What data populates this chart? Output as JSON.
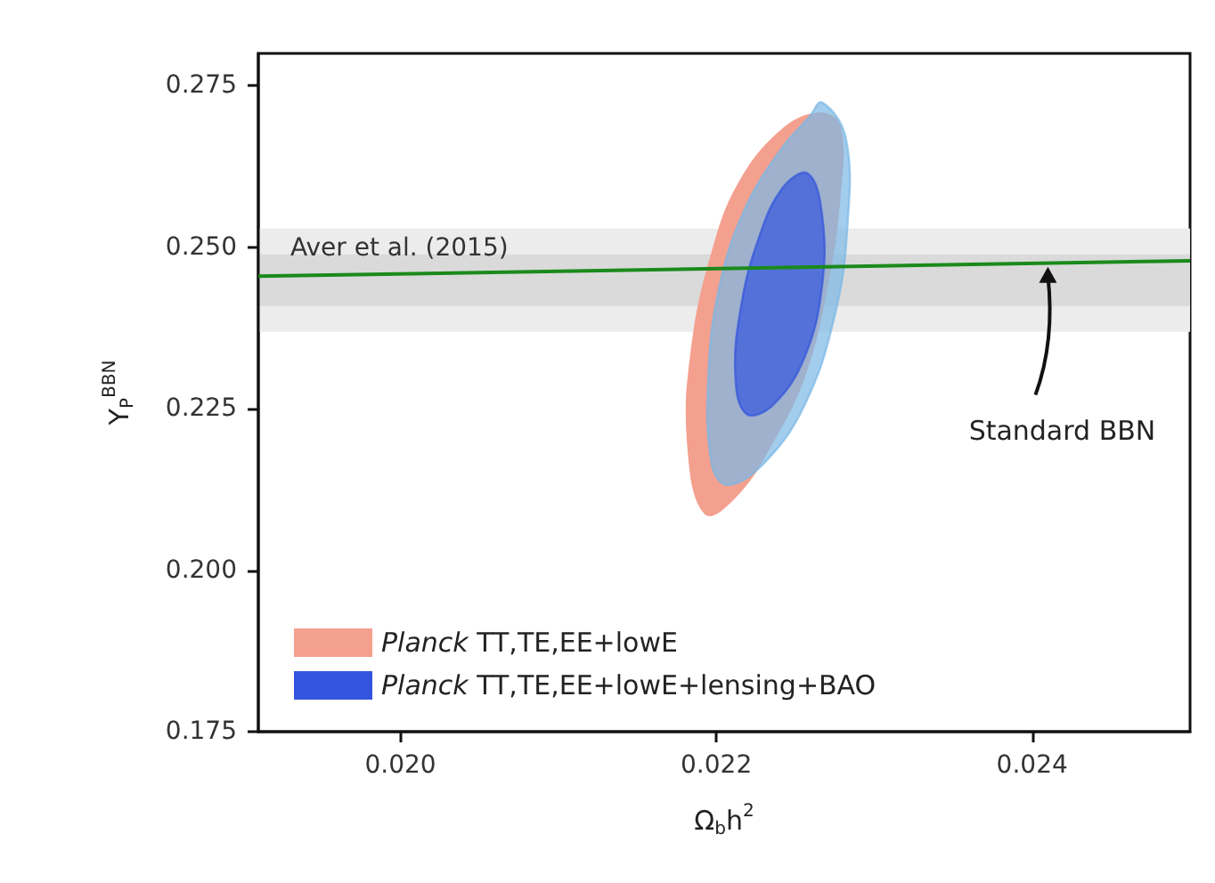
{
  "chart_data": {
    "type": "area",
    "xlabel": "Ω$_{b}$h$^{2}$",
    "ylabel": "Y$_{P}$$^{BBN}$",
    "xlim": [
      0.0191,
      0.025
    ],
    "ylim": [
      0.175,
      0.28
    ],
    "xticks": [
      {
        "value": 0.02,
        "label": "0.020"
      },
      {
        "value": 0.022,
        "label": "0.022"
      },
      {
        "value": 0.024,
        "label": "0.024"
      }
    ],
    "yticks": [
      {
        "value": 0.175,
        "label": "0.175"
      },
      {
        "value": 0.2,
        "label": "0.200"
      },
      {
        "value": 0.225,
        "label": "0.225"
      },
      {
        "value": 0.25,
        "label": "0.250"
      },
      {
        "value": 0.275,
        "label": "0.275"
      }
    ],
    "grid": false,
    "legend": "bottom left",
    "bands": [
      {
        "axis": "y",
        "from": 0.2369,
        "to": 0.2529,
        "label": "Aver et al. (2015)",
        "color": "#ececec"
      },
      {
        "axis": "y",
        "from": 0.2409,
        "to": 0.2489,
        "label": null,
        "color": "#dadada"
      }
    ],
    "series": [
      {
        "name": "Planck TT,TE,EE+lowE",
        "color": "#f4a08f",
        "x": [
          0.02193,
          0.02182,
          0.02185,
          0.02197,
          0.02214,
          0.02241,
          0.02265,
          0.02278,
          0.02278,
          0.0227,
          0.02256,
          0.02236,
          0.02214
        ],
        "values": [
          0.2088,
          0.2201,
          0.235,
          0.2487,
          0.2597,
          0.268,
          0.2707,
          0.2688,
          0.2578,
          0.244,
          0.2303,
          0.2201,
          0.2119
        ]
      },
      {
        "color": "#7ab8e6",
        "x": [
          0.02267,
          0.02282,
          0.02283,
          0.02275,
          0.02256,
          0.0223,
          0.02207,
          0.02197,
          0.02195,
          0.02202,
          0.02218,
          0.02241,
          0.02259
        ],
        "values": [
          0.2724,
          0.2669,
          0.2531,
          0.2394,
          0.2256,
          0.2165,
          0.2132,
          0.2165,
          0.2303,
          0.244,
          0.2559,
          0.2652,
          0.2702
        ]
      },
      {
        "name": "Planck TT,TE,EE+lowE+lensing+BAO",
        "color": "#3355dd",
        "x": [
          0.02258,
          0.02267,
          0.02267,
          0.02256,
          0.02236,
          0.02219,
          0.02212,
          0.02216,
          0.02227,
          0.02242
        ],
        "values": [
          0.2614,
          0.255,
          0.244,
          0.233,
          0.2256,
          0.2242,
          0.2303,
          0.2413,
          0.2515,
          0.2592
        ]
      },
      {
        "type": "line",
        "color": "#1a8a1a",
        "x": [
          0.0191,
          0.025
        ],
        "values": [
          0.2455,
          0.2479
        ]
      }
    ],
    "annotations": [
      {
        "text": "Standard BBN",
        "x": 0.0241,
        "y": 0.2478
      }
    ]
  }
}
